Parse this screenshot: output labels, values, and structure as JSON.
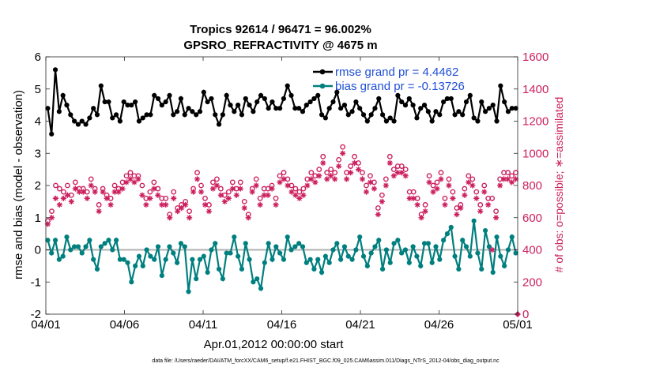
{
  "chart_data": {
    "type": "line",
    "title": "Tropics 92614 / 96471 = 96.002%",
    "subtitle": "GPSRO_REFRACTIVITY @ 4675 m",
    "xlabel": "Apr.01,2012 00:00:00 start",
    "ylabel": "rmse and bias (model - observation)",
    "y2label": "# of obs: o=possible; ∗=assimilated",
    "footer": "data file: /Users/raeder/DAI/ATM_forcXX/CAM6_setup/f.e21.FHIST_BGC.f09_025.CAM6assim.011/Diags_NTrS_2012-04/obs_diag_output.nc",
    "xlim": [
      0,
      120
    ],
    "ylim": [
      -2,
      6
    ],
    "y2lim": [
      0,
      1600
    ],
    "xticks": [
      0,
      20,
      40,
      60,
      80,
      100,
      120
    ],
    "xtick_labels": [
      "04/01",
      "04/06",
      "04/11",
      "04/16",
      "04/21",
      "04/26",
      "05/01"
    ],
    "yticks": [
      -2,
      -1,
      0,
      1,
      2,
      3,
      4,
      5,
      6
    ],
    "y2ticks": [
      0,
      200,
      400,
      600,
      800,
      1000,
      1200,
      1400,
      1600
    ],
    "series": [
      {
        "name": "rmse",
        "legend": "rmse grand pr = 4.4462",
        "color": "#000000",
        "values": [
          4.4,
          3.6,
          5.6,
          4.3,
          4.8,
          4.5,
          4.2,
          4.0,
          3.9,
          4.0,
          3.9,
          4.1,
          4.4,
          4.2,
          5.1,
          4.6,
          4.6,
          4.1,
          4.2,
          4.0,
          4.6,
          4.5,
          4.5,
          4.6,
          4.0,
          4.1,
          4.2,
          4.2,
          4.8,
          4.7,
          4.5,
          4.6,
          4.8,
          4.2,
          4.3,
          4.7,
          4.2,
          4.4,
          4.3,
          4.2,
          4.3,
          4.9,
          4.6,
          4.7,
          4.2,
          3.9,
          4.2,
          4.8,
          4.5,
          4.3,
          4.5,
          4.2,
          4.7,
          4.5,
          4.3,
          4.6,
          4.8,
          4.7,
          4.4,
          4.6,
          4.4,
          4.4,
          4.7,
          5.1,
          4.8,
          4.4,
          4.4,
          4.3,
          4.5,
          4.6,
          4.7,
          4.8,
          4.2,
          4.1,
          4.4,
          4.6,
          4.9,
          4.4,
          4.5,
          4.2,
          4.3,
          4.6,
          4.4,
          4.2,
          4.0,
          4.2,
          4.4,
          4.7,
          4.2,
          4.0,
          4.1,
          4.0,
          4.8,
          4.6,
          4.5,
          4.7,
          4.5,
          4.1,
          4.4,
          4.5,
          4.3,
          4.0,
          4.3,
          4.2,
          4.6,
          4.7,
          4.7,
          4.2,
          4.3,
          4.2,
          4.6,
          4.8,
          4.1,
          4.0,
          4.6,
          4.3,
          4.4,
          4.5,
          4.0,
          5.1,
          4.6,
          4.3,
          4.4,
          4.4
        ]
      },
      {
        "name": "bias",
        "legend": "bias grand pr = -0.13726",
        "color": "#007f7f",
        "values": [
          0.3,
          -0.1,
          0.3,
          -0.3,
          -0.2,
          0.4,
          0.0,
          0.1,
          0.1,
          -0.1,
          0.1,
          0.3,
          -0.3,
          -0.6,
          0.1,
          0.2,
          0.3,
          0.0,
          0.3,
          -0.3,
          -0.3,
          -0.4,
          -1.0,
          -0.5,
          -0.2,
          -0.5,
          0.0,
          -0.2,
          -0.3,
          0.1,
          -0.8,
          -0.3,
          0.1,
          -0.1,
          -0.4,
          0.2,
          0.1,
          -1.3,
          -0.3,
          -0.9,
          -0.3,
          -0.2,
          -0.7,
          0.0,
          0.2,
          -0.6,
          -0.9,
          -0.1,
          -0.1,
          0.4,
          -0.2,
          -0.6,
          0.2,
          -0.3,
          -1.0,
          -0.9,
          -1.2,
          -0.4,
          0.2,
          -0.3,
          0.1,
          -0.1,
          -0.3,
          0.4,
          0.0,
          0.1,
          0.2,
          0.1,
          -0.4,
          -0.3,
          -0.6,
          -0.3,
          -0.7,
          -0.2,
          -0.4,
          0.0,
          0.2,
          -0.3,
          0.1,
          -0.2,
          -0.3,
          0.0,
          0.4,
          -0.2,
          -0.5,
          -0.1,
          0.1,
          0.3,
          -0.6,
          0.0,
          -0.4,
          0.2,
          0.3,
          -0.1,
          0.0,
          -0.4,
          0.1,
          -0.2,
          -0.5,
          0.2,
          0.2,
          -0.4,
          0.1,
          -0.3,
          0.3,
          0.5,
          0.7,
          -0.2,
          -0.6,
          0.3,
          0.1,
          -0.2,
          0.9,
          -0.1,
          -0.6,
          0.6,
          0.1,
          -0.7,
          0.4,
          -0.2,
          -0.5,
          0.0,
          0.4,
          -0.1
        ]
      },
      {
        "name": "possible",
        "marker": "o",
        "color": "#cc1f5e",
        "values": [
          580,
          640,
          800,
          780,
          760,
          800,
          740,
          820,
          780,
          780,
          760,
          840,
          780,
          680,
          780,
          740,
          720,
          800,
          780,
          820,
          860,
          880,
          860,
          860,
          800,
          720,
          760,
          820,
          780,
          720,
          720,
          620,
          760,
          660,
          680,
          700,
          640,
          780,
          880,
          800,
          720,
          680,
          820,
          840,
          780,
          740,
          760,
          820,
          780,
          820,
          700,
          620,
          780,
          840,
          720,
          780,
          780,
          800,
          720,
          860,
          880,
          840,
          800,
          780,
          760,
          780,
          840,
          880,
          860,
          900,
          980,
          880,
          900,
          880,
          960,
          1040,
          880,
          920,
          980,
          940,
          880,
          800,
          860,
          820,
          660,
          740,
          840,
          980,
          900,
          920,
          920,
          900,
          760,
          760,
          720,
          620,
          680,
          860,
          800,
          820,
          880,
          720,
          840,
          760,
          660,
          680,
          780,
          860,
          840,
          760,
          680,
          800,
          720,
          720,
          640,
          840,
          880,
          880,
          860,
          880
        ]
      },
      {
        "name": "assimilated",
        "marker": "*",
        "color": "#cc1f5e",
        "values": [
          560,
          600,
          720,
          680,
          720,
          740,
          700,
          780,
          760,
          760,
          720,
          800,
          760,
          640,
          760,
          720,
          680,
          760,
          760,
          780,
          820,
          840,
          820,
          840,
          740,
          680,
          720,
          780,
          740,
          680,
          680,
          600,
          720,
          640,
          660,
          680,
          600,
          760,
          840,
          760,
          680,
          640,
          780,
          800,
          740,
          700,
          720,
          780,
          740,
          780,
          660,
          600,
          760,
          800,
          680,
          740,
          740,
          780,
          680,
          820,
          840,
          800,
          760,
          740,
          720,
          740,
          800,
          840,
          820,
          860,
          940,
          840,
          860,
          840,
          920,
          1000,
          840,
          880,
          940,
          900,
          840,
          760,
          820,
          780,
          620,
          700,
          800,
          940,
          860,
          880,
          880,
          860,
          720,
          720,
          680,
          600,
          640,
          820,
          760,
          780,
          840,
          680,
          800,
          720,
          620,
          660,
          740,
          820,
          800,
          720,
          640,
          760,
          680,
          400,
          600,
          800,
          840,
          840,
          820,
          840
        ]
      }
    ]
  }
}
